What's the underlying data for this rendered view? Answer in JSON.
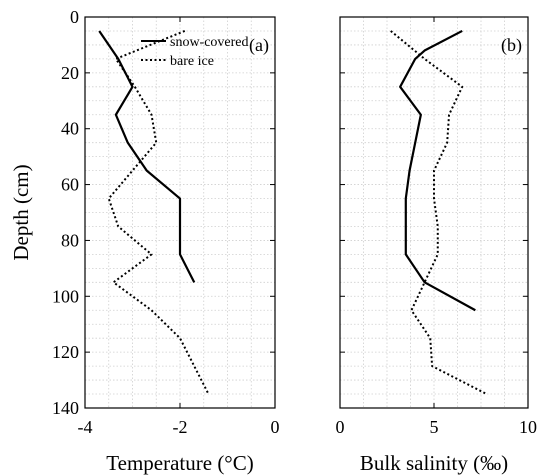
{
  "chart_data": [
    {
      "type": "line",
      "panel_label": "(a)",
      "xlabel": "Temperature (°C)",
      "ylabel": "Depth (cm)",
      "xlim": [
        -4,
        0
      ],
      "ylim": [
        0,
        140
      ],
      "y_inverted": true,
      "grid": true,
      "xticks": [
        -4,
        -2,
        0
      ],
      "xtick_labels": [
        "-4",
        "-2",
        "0"
      ],
      "yticks": [
        0,
        20,
        40,
        60,
        80,
        100,
        120,
        140
      ],
      "ytick_labels": [
        "0",
        "20",
        "40",
        "60",
        "80",
        "100",
        "120",
        "140"
      ],
      "legend_position": "top-right",
      "series": [
        {
          "name": "snow-covered",
          "style": "solid",
          "points": [
            [
              -3.7,
              5
            ],
            [
              -3.3,
              15
            ],
            [
              -3.0,
              25
            ],
            [
              -3.35,
              35
            ],
            [
              -3.1,
              45
            ],
            [
              -2.7,
              55
            ],
            [
              -2.0,
              65
            ],
            [
              -2.0,
              75
            ],
            [
              -2.0,
              85
            ],
            [
              -1.7,
              95
            ]
          ]
        },
        {
          "name": "bare ice",
          "style": "dotted",
          "points": [
            [
              -1.9,
              5
            ],
            [
              -3.35,
              15
            ],
            [
              -2.95,
              25
            ],
            [
              -2.6,
              35
            ],
            [
              -2.5,
              45
            ],
            [
              -3.0,
              55
            ],
            [
              -3.5,
              65
            ],
            [
              -3.3,
              75
            ],
            [
              -2.6,
              85
            ],
            [
              -3.4,
              95
            ],
            [
              -2.6,
              105
            ],
            [
              -2.0,
              115
            ],
            [
              -1.7,
              125
            ],
            [
              -1.4,
              135
            ]
          ]
        }
      ]
    },
    {
      "type": "line",
      "panel_label": "(b)",
      "xlabel": "Bulk salinity (‰)",
      "ylabel": "",
      "xlim": [
        0,
        10
      ],
      "ylim": [
        0,
        140
      ],
      "y_inverted": true,
      "grid": true,
      "xticks": [
        0,
        5,
        10
      ],
      "xtick_labels": [
        "0",
        "5",
        "10"
      ],
      "yticks": [
        0,
        20,
        40,
        60,
        80,
        100,
        120,
        140
      ],
      "series": [
        {
          "name": "snow-covered",
          "style": "solid",
          "points": [
            [
              6.5,
              5
            ],
            [
              4.5,
              12
            ],
            [
              4.0,
              15
            ],
            [
              3.2,
              25
            ],
            [
              4.3,
              35
            ],
            [
              4.0,
              45
            ],
            [
              3.7,
              55
            ],
            [
              3.5,
              65
            ],
            [
              3.5,
              75
            ],
            [
              3.5,
              85
            ],
            [
              4.5,
              95
            ],
            [
              7.2,
              105
            ]
          ]
        },
        {
          "name": "bare ice",
          "style": "dotted",
          "points": [
            [
              2.7,
              5
            ],
            [
              4.5,
              15
            ],
            [
              6.5,
              25
            ],
            [
              5.8,
              35
            ],
            [
              5.7,
              45
            ],
            [
              5.0,
              55
            ],
            [
              5.0,
              65
            ],
            [
              5.2,
              75
            ],
            [
              5.2,
              85
            ],
            [
              4.5,
              95
            ],
            [
              3.8,
              105
            ],
            [
              4.8,
              115
            ],
            [
              4.9,
              125
            ],
            [
              7.8,
              135
            ]
          ]
        }
      ]
    }
  ]
}
